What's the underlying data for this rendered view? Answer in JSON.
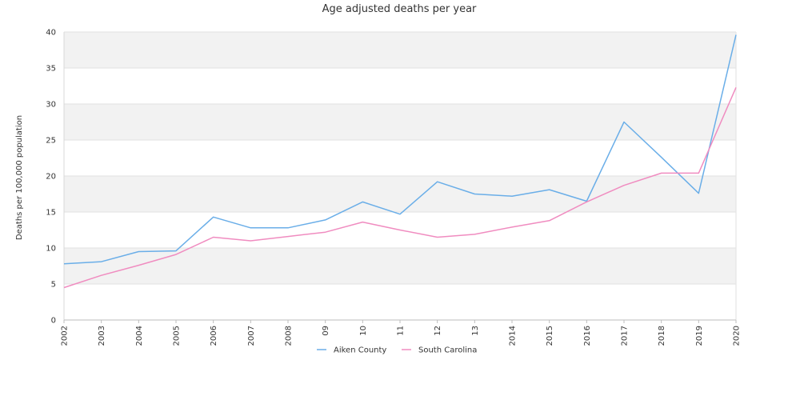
{
  "chart_data": {
    "type": "line",
    "title": "Age adjusted deaths per year",
    "xlabel": "",
    "ylabel": "Deaths per 100,000 population",
    "ylim": [
      0,
      40
    ],
    "yticks": [
      0,
      5,
      10,
      15,
      20,
      25,
      30,
      35,
      40
    ],
    "categories": [
      "2002",
      "2003",
      "2004",
      "2005",
      "2006",
      "2007",
      "2008",
      "09",
      "10",
      "11",
      "12",
      "13",
      "2014",
      "2015",
      "2016",
      "2017",
      "2018",
      "2019",
      "2020"
    ],
    "grid": "horizontal bands",
    "legend_position": "bottom-center",
    "series": [
      {
        "name": "Aiken County",
        "color": "#6aaee8",
        "values": [
          7.8,
          8.1,
          9.5,
          9.6,
          14.3,
          12.8,
          12.8,
          13.9,
          16.4,
          14.7,
          19.2,
          17.5,
          17.2,
          18.1,
          16.5,
          27.5,
          22.6,
          17.6,
          39.6
        ]
      },
      {
        "name": "South Carolina",
        "color": "#f08cc0",
        "values": [
          4.5,
          6.2,
          7.6,
          9.1,
          11.5,
          11.0,
          11.6,
          12.2,
          13.6,
          12.5,
          11.5,
          11.9,
          12.9,
          13.8,
          16.4,
          18.7,
          20.4,
          20.4,
          32.3
        ]
      }
    ]
  }
}
